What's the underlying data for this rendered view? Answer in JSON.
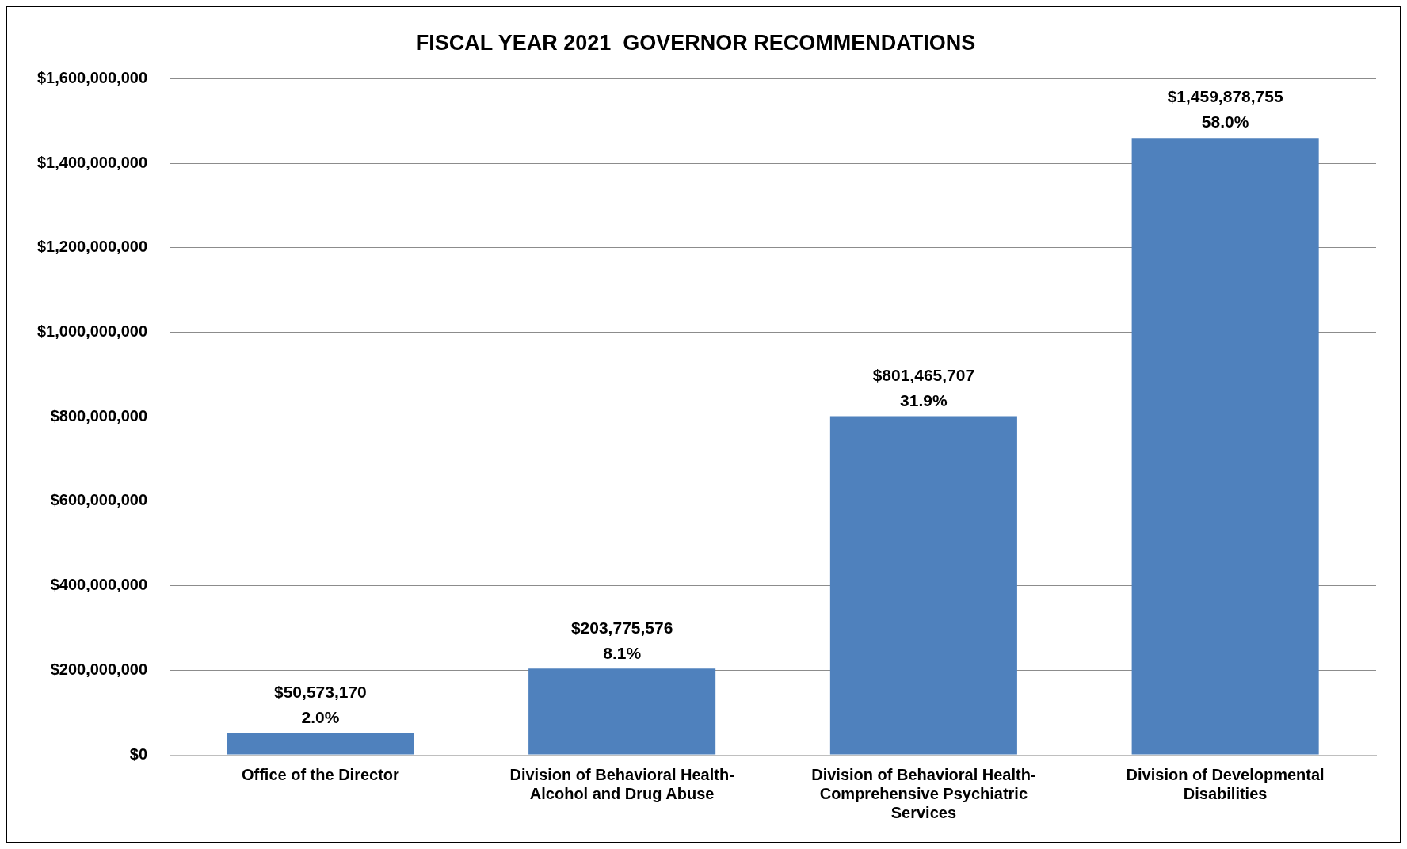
{
  "chart_data": {
    "type": "bar",
    "title": "FISCAL YEAR 2021  GOVERNOR RECOMMENDATIONS",
    "categories": [
      "Office of the Director",
      "Division of Behavioral Health-Alcohol and Drug Abuse",
      "Division of Behavioral Health-Comprehensive Psychiatric Services",
      "Division of Developmental Disabilities"
    ],
    "values": [
      50573170,
      203775576,
      801465707,
      1459878755
    ],
    "value_labels": [
      "$50,573,170\n2.0%",
      "$203,775,576\n8.1%",
      "$801,465,707\n31.9%",
      "$1,459,878,755\n58.0%"
    ],
    "color": "#4f81bd",
    "ylim": [
      0,
      1600000000
    ],
    "yticks": [
      {
        "value": 0,
        "label": "$0"
      },
      {
        "value": 200000000,
        "label": "$200,000,000"
      },
      {
        "value": 400000000,
        "label": "$400,000,000"
      },
      {
        "value": 600000000,
        "label": "$600,000,000"
      },
      {
        "value": 800000000,
        "label": "$800,000,000"
      },
      {
        "value": 1000000000,
        "label": "$1,000,000,000"
      },
      {
        "value": 1200000000,
        "label": "$1,200,000,000"
      },
      {
        "value": 1400000000,
        "label": "$1,400,000,000"
      },
      {
        "value": 1600000000,
        "label": "$1,600,000,000"
      }
    ],
    "grid": "y",
    "legend": false
  }
}
